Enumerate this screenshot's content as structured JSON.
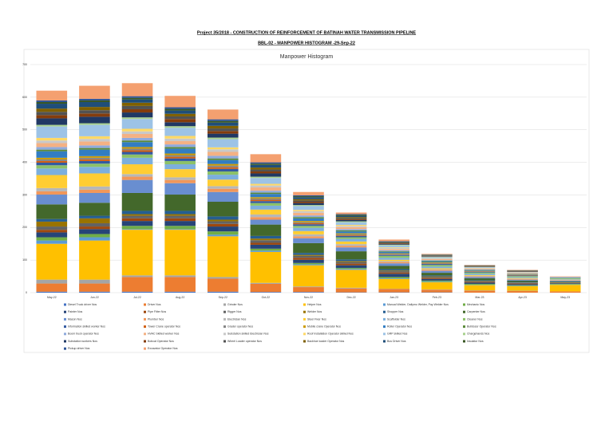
{
  "header": {
    "project": "Project 35/2018 - CONSTRUCTION OF REINFORCEMENT OF BATINAH WATER TRANSMISSION PIPELINE",
    "report": "BBL-02 - MANPOWER HISTOGRAM -29-Sep-22"
  },
  "chart_data": {
    "type": "stacked_bar",
    "title": "Manpower Histogram",
    "categories": [
      "May-22",
      "Jun-22",
      "Jul-22",
      "Aug-22",
      "Sep-22",
      "Oct-22",
      "Nov-22",
      "Dec-22",
      "Jan-23",
      "Feb-23",
      "Mar-23",
      "Apr-23",
      "May-23"
    ],
    "ylim": [
      0,
      700
    ],
    "yticks": [
      0,
      100,
      200,
      300,
      400,
      500,
      600,
      700
    ],
    "grid": true,
    "series": [
      {
        "name": "Diesel Truck driver Nos",
        "color": "#4472c4",
        "values": [
          3,
          3,
          3,
          3,
          3,
          2,
          2,
          1,
          1,
          1,
          0,
          0,
          0
        ]
      },
      {
        "name": "Driver Nos",
        "color": "#ed7d31",
        "values": [
          25,
          25,
          45,
          45,
          40,
          25,
          15,
          12,
          10,
          8,
          6,
          5,
          4
        ]
      },
      {
        "name": "Grinder Nos",
        "color": "#a5a5a5",
        "values": [
          12,
          12,
          5,
          5,
          5,
          3,
          2,
          2,
          1,
          1,
          1,
          1,
          0
        ]
      },
      {
        "name": "Helper Nos",
        "color": "#ffc000",
        "values": [
          110,
          120,
          140,
          140,
          125,
          95,
          65,
          55,
          30,
          22,
          16,
          14,
          20
        ]
      },
      {
        "name": "Manual Welder, Dailymo Welder, Pay Welder Nos",
        "color": "#5b9bd5",
        "values": [
          10,
          10,
          2,
          2,
          5,
          4,
          3,
          3,
          2,
          2,
          1,
          1,
          1
        ]
      },
      {
        "name": "Mechanic Nos",
        "color": "#70ad47",
        "values": [
          10,
          10,
          10,
          10,
          10,
          6,
          4,
          3,
          4,
          3,
          3,
          2,
          2
        ]
      },
      {
        "name": "Painter Nos",
        "color": "#264478",
        "values": [
          15,
          15,
          15,
          15,
          15,
          12,
          10,
          8,
          10,
          5,
          4,
          3,
          2
        ]
      },
      {
        "name": "Pipe Fitter Nos",
        "color": "#9e480e",
        "values": [
          8,
          8,
          8,
          8,
          8,
          6,
          6,
          5,
          4,
          3,
          2,
          2,
          1
        ]
      },
      {
        "name": "Rigger Nos",
        "color": "#636363",
        "values": [
          10,
          10,
          8,
          8,
          8,
          8,
          6,
          5,
          4,
          3,
          2,
          2,
          1
        ]
      },
      {
        "name": "Welder Nos",
        "color": "#997300",
        "values": [
          15,
          15,
          5,
          5,
          5,
          5,
          3,
          3,
          2,
          2,
          1,
          1,
          1
        ]
      },
      {
        "name": "Shopper Nos",
        "color": "#255e91",
        "values": [
          8,
          8,
          10,
          10,
          10,
          8,
          6,
          5,
          4,
          3,
          2,
          2,
          1
        ]
      },
      {
        "name": "Carpenter Nos",
        "color": "#43682b",
        "values": [
          45,
          40,
          55,
          50,
          45,
          35,
          30,
          25,
          10,
          8,
          6,
          4,
          2
        ]
      },
      {
        "name": "Mason Nos",
        "color": "#698ed0",
        "values": [
          30,
          30,
          40,
          35,
          30,
          15,
          15,
          12,
          8,
          6,
          4,
          3,
          2
        ]
      },
      {
        "name": "Plumber Nos",
        "color": "#f1975a",
        "values": [
          10,
          10,
          10,
          10,
          10,
          8,
          6,
          5,
          4,
          3,
          2,
          2,
          1
        ]
      },
      {
        "name": "Electrician Nos",
        "color": "#b7b7b7",
        "values": [
          10,
          10,
          8,
          8,
          8,
          8,
          6,
          5,
          3,
          2,
          2,
          1,
          1
        ]
      },
      {
        "name": "Steel Fixer Nos",
        "color": "#ffcd33",
        "values": [
          40,
          40,
          30,
          25,
          20,
          15,
          10,
          8,
          4,
          3,
          2,
          2,
          1
        ]
      },
      {
        "name": "Scaffolder Nos",
        "color": "#7cafdd",
        "values": [
          20,
          20,
          20,
          15,
          15,
          12,
          10,
          8,
          6,
          5,
          4,
          3,
          2
        ]
      },
      {
        "name": "Cleaner Nos",
        "color": "#8cc168",
        "values": [
          10,
          10,
          10,
          10,
          10,
          8,
          6,
          5,
          6,
          5,
          4,
          3,
          3
        ]
      },
      {
        "name": "Information skilled worker Nos",
        "color": "#335aa1",
        "values": [
          8,
          8,
          8,
          8,
          8,
          6,
          5,
          4,
          3,
          3,
          2,
          2,
          1
        ]
      },
      {
        "name": "Tower Crane operator Nos",
        "color": "#d26012",
        "values": [
          5,
          5,
          5,
          5,
          5,
          4,
          3,
          2,
          1,
          1,
          1,
          1,
          0
        ]
      },
      {
        "name": "Grader operator Nos",
        "color": "#848484",
        "values": [
          5,
          5,
          5,
          5,
          5,
          4,
          3,
          3,
          2,
          2,
          1,
          1,
          0
        ]
      },
      {
        "name": "Mobile crane Operator Nos",
        "color": "#cc9a00",
        "values": [
          5,
          5,
          5,
          5,
          5,
          4,
          4,
          3,
          2,
          2,
          1,
          1,
          0
        ]
      },
      {
        "name": "Roller Operator Nos",
        "color": "#327dc2",
        "values": [
          20,
          20,
          15,
          15,
          12,
          10,
          8,
          6,
          4,
          3,
          2,
          1,
          1
        ]
      },
      {
        "name": "Bulldozer Operator Nos",
        "color": "#5a8a39",
        "values": [
          5,
          5,
          5,
          5,
          5,
          4,
          4,
          3,
          2,
          2,
          1,
          1,
          0
        ]
      },
      {
        "name": "Boom truck operator Nos",
        "color": "#8faadc",
        "values": [
          8,
          8,
          8,
          8,
          8,
          6,
          5,
          4,
          3,
          2,
          2,
          1,
          1
        ]
      },
      {
        "name": "HVAC Skilled worker Nos",
        "color": "#f4b183",
        "values": [
          12,
          12,
          12,
          10,
          12,
          10,
          8,
          6,
          4,
          3,
          2,
          2,
          1
        ]
      },
      {
        "name": "Substation skilled Electrician Nos",
        "color": "#c9c9c9",
        "values": [
          8,
          8,
          8,
          8,
          8,
          6,
          5,
          4,
          3,
          2,
          1,
          1,
          0
        ]
      },
      {
        "name": "Roof Installation Operator skilled Nos",
        "color": "#ffd966",
        "values": [
          8,
          8,
          8,
          8,
          6,
          5,
          4,
          3,
          2,
          1,
          1,
          0,
          0
        ]
      },
      {
        "name": "GRP skilled Nos",
        "color": "#9dc3e6",
        "values": [
          35,
          35,
          30,
          25,
          25,
          18,
          12,
          8,
          6,
          3,
          2,
          1,
          0
        ]
      },
      {
        "name": "Chargehands Nos",
        "color": "#a9d18e",
        "values": [
          5,
          5,
          5,
          5,
          5,
          4,
          3,
          3,
          2,
          1,
          1,
          1,
          0
        ]
      },
      {
        "name": "Substation workers Nos",
        "color": "#203864",
        "values": [
          20,
          20,
          15,
          12,
          12,
          10,
          6,
          4,
          2,
          1,
          1,
          1,
          0
        ]
      },
      {
        "name": "Bobcat Operator Nos",
        "color": "#843c0c",
        "values": [
          10,
          10,
          10,
          10,
          8,
          6,
          4,
          3,
          2,
          1,
          1,
          1,
          0
        ]
      },
      {
        "name": "Wheel Loader operator Nos",
        "color": "#525252",
        "values": [
          10,
          10,
          10,
          8,
          8,
          6,
          4,
          3,
          2,
          1,
          1,
          1,
          0
        ]
      },
      {
        "name": "Backhoe loader Operator Nos",
        "color": "#7f6000",
        "values": [
          10,
          10,
          10,
          8,
          8,
          6,
          4,
          3,
          1,
          1,
          1,
          1,
          0
        ]
      },
      {
        "name": "Bus Driver Nos",
        "color": "#1f4e79",
        "values": [
          15,
          15,
          10,
          10,
          10,
          8,
          6,
          4,
          2,
          1,
          1,
          1,
          0
        ]
      },
      {
        "name": "Insulator Nos",
        "color": "#385723",
        "values": [
          5,
          5,
          5,
          5,
          5,
          4,
          3,
          3,
          1,
          1,
          0,
          0,
          0
        ]
      },
      {
        "name": "Pickup driver Nos",
        "color": "#2f5597",
        "values": [
          5,
          5,
          5,
          5,
          5,
          4,
          3,
          2,
          1,
          1,
          0,
          0,
          0
        ]
      },
      {
        "name": "Excavator Operator Nos",
        "color": "#f4a070",
        "values": [
          30,
          40,
          40,
          35,
          30,
          25,
          10,
          5,
          5,
          2,
          1,
          1,
          1
        ]
      }
    ]
  }
}
